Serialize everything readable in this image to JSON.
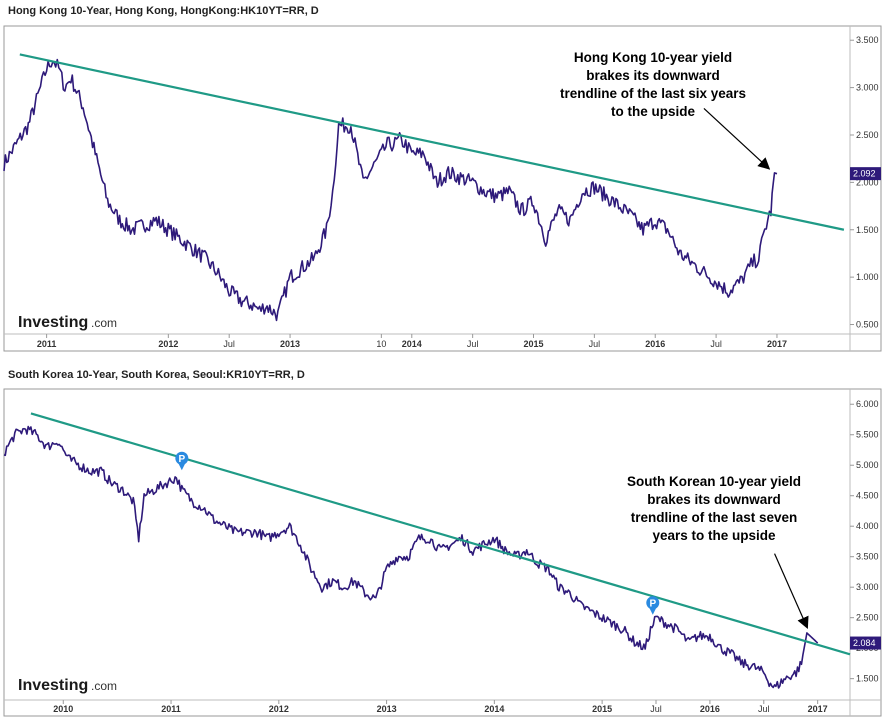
{
  "chart_data": [
    {
      "type": "line",
      "title": "Hong Kong 10-Year, Hong Kong, HongKong:HK10YT=RR, D",
      "y_ticks": [
        "3.500",
        "3.000",
        "2.500",
        "2.000",
        "1.500",
        "1.000",
        "0.500"
      ],
      "ylim": [
        0.4,
        3.65
      ],
      "x_ticks": [
        {
          "label": "2011",
          "t": 2011.0,
          "bold": true
        },
        {
          "label": "2012",
          "t": 2012.0,
          "bold": true
        },
        {
          "label": "Jul",
          "t": 2012.5,
          "bold": false
        },
        {
          "label": "2013",
          "t": 2013.0,
          "bold": true
        },
        {
          "label": "10",
          "t": 2013.75,
          "bold": false
        },
        {
          "label": "2014",
          "t": 2014.0,
          "bold": true
        },
        {
          "label": "Jul",
          "t": 2014.5,
          "bold": false
        },
        {
          "label": "2015",
          "t": 2015.0,
          "bold": true
        },
        {
          "label": "Jul",
          "t": 2015.5,
          "bold": false
        },
        {
          "label": "2016",
          "t": 2016.0,
          "bold": true
        },
        {
          "label": "Jul",
          "t": 2016.5,
          "bold": false
        },
        {
          "label": "2017",
          "t": 2017.0,
          "bold": true
        }
      ],
      "xlim": [
        2010.65,
        2017.6
      ],
      "series": [
        {
          "x": [
            2010.65,
            2010.75,
            2010.85,
            2010.95,
            2011.0,
            2011.05,
            2011.1,
            2011.15,
            2011.2,
            2011.3,
            2011.4,
            2011.5,
            2011.6,
            2011.7,
            2011.8,
            2011.9,
            2012.0,
            2012.1,
            2012.2,
            2012.3,
            2012.4,
            2012.5,
            2012.6,
            2012.7,
            2012.75,
            2012.8,
            2012.9,
            2013.0,
            2013.1,
            2013.2,
            2013.3,
            2013.35,
            2013.4,
            2013.5,
            2013.6,
            2013.7,
            2013.75,
            2013.8,
            2013.85,
            2013.9,
            2013.95,
            2014.0,
            2014.1,
            2014.2,
            2014.3,
            2014.4,
            2014.5,
            2014.6,
            2014.7,
            2014.8,
            2014.9,
            2015.0,
            2015.1,
            2015.2,
            2015.3,
            2015.4,
            2015.5,
            2015.6,
            2015.7,
            2015.8,
            2015.9,
            2016.0,
            2016.1,
            2016.2,
            2016.3,
            2016.4,
            2016.5,
            2016.6,
            2016.7,
            2016.75,
            2016.8,
            2016.85,
            2016.9,
            2016.95,
            2016.98,
            2017.0
          ],
          "values": [
            2.2,
            2.4,
            2.6,
            3.0,
            3.2,
            3.3,
            3.2,
            3.0,
            3.1,
            2.8,
            2.3,
            1.8,
            1.6,
            1.5,
            1.55,
            1.6,
            1.5,
            1.4,
            1.3,
            1.2,
            1.05,
            0.85,
            0.75,
            0.7,
            0.65,
            0.7,
            0.6,
            1.0,
            1.1,
            1.2,
            1.5,
            1.9,
            2.6,
            2.6,
            2.0,
            2.2,
            2.3,
            2.4,
            2.4,
            2.45,
            2.4,
            2.3,
            2.3,
            2.0,
            2.1,
            2.05,
            2.0,
            1.9,
            1.85,
            1.9,
            1.7,
            1.8,
            1.4,
            1.7,
            1.6,
            1.9,
            1.95,
            1.85,
            1.75,
            1.65,
            1.5,
            1.6,
            1.5,
            1.25,
            1.15,
            1.05,
            0.95,
            0.85,
            0.95,
            1.05,
            1.15,
            1.2,
            1.5,
            1.7,
            2.1,
            2.092
          ],
          "color": "#2e1a7a"
        }
      ],
      "trendline": {
        "x": [
          2010.78,
          2017.55
        ],
        "y": [
          3.35,
          1.5
        ],
        "color": "#1f9a86"
      },
      "last_value": "2.092",
      "annotation": {
        "lines": [
          "Hong Kong 10-year yield",
          "brakes its downward",
          "trendline of the last six years",
          "to  the upside"
        ],
        "arrow_from": {
          "x": 2016.4,
          "y": 2.78
        },
        "arrow_to": {
          "x": 2016.93,
          "y": 2.15
        }
      }
    },
    {
      "type": "line",
      "title": "South Korea 10-Year, South Korea, Seoul:KR10YT=RR, D",
      "y_ticks": [
        "6.000",
        "5.500",
        "5.000",
        "4.500",
        "4.000",
        "3.500",
        "3.000",
        "2.500",
        "2.000",
        "1.500"
      ],
      "ylim": [
        1.15,
        6.25
      ],
      "x_ticks": [
        {
          "label": "2010",
          "t": 2010.0,
          "bold": true
        },
        {
          "label": "2011",
          "t": 2011.0,
          "bold": true
        },
        {
          "label": "2012",
          "t": 2012.0,
          "bold": true
        },
        {
          "label": "2013",
          "t": 2013.0,
          "bold": true
        },
        {
          "label": "2014",
          "t": 2014.0,
          "bold": true
        },
        {
          "label": "2015",
          "t": 2015.0,
          "bold": true
        },
        {
          "label": "Jul",
          "t": 2015.5,
          "bold": false
        },
        {
          "label": "2016",
          "t": 2016.0,
          "bold": true
        },
        {
          "label": "Jul",
          "t": 2016.5,
          "bold": false
        },
        {
          "label": "2017",
          "t": 2017.0,
          "bold": true
        }
      ],
      "xlim": [
        2009.45,
        2017.3
      ],
      "series": [
        {
          "x": [
            2009.45,
            2009.55,
            2009.65,
            2009.75,
            2009.85,
            2009.95,
            2010.05,
            2010.15,
            2010.25,
            2010.35,
            2010.45,
            2010.55,
            2010.65,
            2010.7,
            2010.75,
            2010.85,
            2010.95,
            2011.05,
            2011.1,
            2011.2,
            2011.3,
            2011.4,
            2011.5,
            2011.6,
            2011.7,
            2011.8,
            2011.9,
            2012.0,
            2012.1,
            2012.2,
            2012.3,
            2012.4,
            2012.5,
            2012.6,
            2012.7,
            2012.8,
            2012.9,
            2013.0,
            2013.1,
            2013.2,
            2013.3,
            2013.4,
            2013.5,
            2013.6,
            2013.7,
            2013.8,
            2013.9,
            2014.0,
            2014.1,
            2014.2,
            2014.3,
            2014.4,
            2014.5,
            2014.6,
            2014.7,
            2014.8,
            2014.9,
            2015.0,
            2015.1,
            2015.2,
            2015.3,
            2015.4,
            2015.45,
            2015.5,
            2015.6,
            2015.7,
            2015.8,
            2015.9,
            2016.0,
            2016.1,
            2016.2,
            2016.3,
            2016.4,
            2016.5,
            2016.55,
            2016.6,
            2016.7,
            2016.8,
            2016.85,
            2016.9,
            2017.0
          ],
          "values": [
            5.2,
            5.5,
            5.6,
            5.5,
            5.3,
            5.4,
            5.1,
            5.0,
            4.9,
            4.9,
            4.7,
            4.6,
            4.4,
            3.8,
            4.5,
            4.6,
            4.7,
            4.8,
            4.6,
            4.4,
            4.3,
            4.1,
            4.0,
            3.9,
            3.9,
            3.9,
            3.8,
            3.9,
            4.0,
            3.7,
            3.3,
            3.0,
            3.1,
            3.0,
            3.1,
            2.9,
            2.8,
            3.3,
            3.5,
            3.5,
            3.8,
            3.8,
            3.6,
            3.7,
            3.8,
            3.6,
            3.7,
            3.8,
            3.6,
            3.5,
            3.6,
            3.4,
            3.3,
            3.0,
            2.9,
            2.7,
            2.6,
            2.5,
            2.4,
            2.3,
            2.1,
            2.0,
            2.3,
            2.5,
            2.4,
            2.3,
            2.1,
            2.2,
            2.2,
            2.0,
            1.9,
            1.75,
            1.7,
            1.6,
            1.45,
            1.35,
            1.5,
            1.6,
            1.75,
            2.25,
            2.084
          ],
          "color": "#2e1a7a"
        }
      ],
      "trendline": {
        "x": [
          2009.7,
          2017.3
        ],
        "y": [
          5.85,
          1.9
        ],
        "color": "#1f9a86"
      },
      "last_value": "2.084",
      "badges": [
        {
          "label": "P",
          "x": 2011.1,
          "y": 4.95
        },
        {
          "label": "P",
          "x": 2015.47,
          "y": 2.58
        }
      ],
      "annotation": {
        "lines": [
          "South Korean 10-year yield",
          "brakes its downward",
          "trendline of the last seven",
          "years to  the upside"
        ],
        "arrow_from": {
          "x": 2016.6,
          "y": 3.55
        },
        "arrow_to": {
          "x": 2016.9,
          "y": 2.35
        }
      }
    }
  ],
  "branding": {
    "logo": "Investing",
    "logo_suffix": ".com"
  },
  "colors": {
    "line": "#2e1a7a",
    "trend": "#1f9a86",
    "label_bg": "#2e1a7a",
    "badge": "#2a8ae0"
  }
}
